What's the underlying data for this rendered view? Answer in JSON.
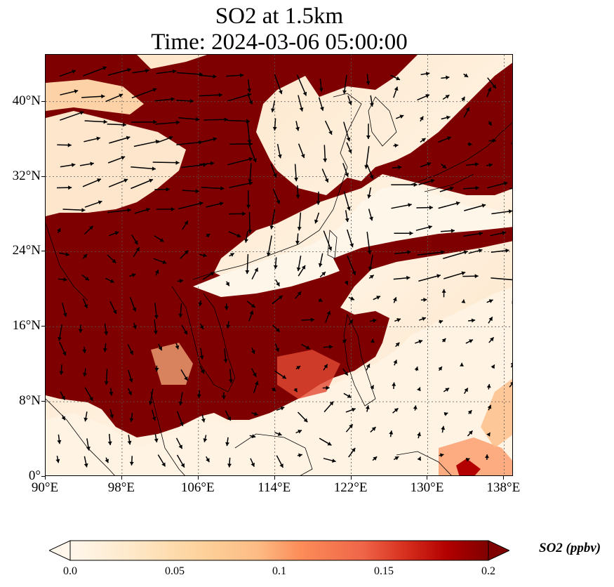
{
  "title": {
    "line1": "SO2 at 1.5km",
    "line2": "Time: 2024-03-06 05:00:00"
  },
  "map": {
    "extent": {
      "lon_min": 90,
      "lon_max": 139,
      "lat_min": 0,
      "lat_max": 45
    },
    "x_ticks": [
      {
        "value": 90,
        "label": "90°E"
      },
      {
        "value": 98,
        "label": "98°E"
      },
      {
        "value": 106,
        "label": "106°E"
      },
      {
        "value": 114,
        "label": "114°E"
      },
      {
        "value": 122,
        "label": "122°E"
      },
      {
        "value": 130,
        "label": "130°E"
      },
      {
        "value": 138,
        "label": "138°E"
      }
    ],
    "y_ticks": [
      {
        "value": 40,
        "label": "40°N"
      },
      {
        "value": 32,
        "label": "32°N"
      },
      {
        "value": 24,
        "label": "24°N"
      },
      {
        "value": 16,
        "label": "16°N"
      },
      {
        "value": 8,
        "label": "8°N"
      },
      {
        "value": 0,
        "label": "0°"
      }
    ],
    "gridlines": true,
    "colors": {
      "max": "#7f0000",
      "mid": "#d7301f",
      "low": "#fdbb84",
      "zero": "#fff7ec"
    }
  },
  "colorbar": {
    "label": "SO2 (ppbv)",
    "ticks": [
      {
        "value": 0,
        "label": "0.0"
      },
      {
        "value": 0.05,
        "label": "0.05"
      },
      {
        "value": 0.1,
        "label": "0.1"
      },
      {
        "value": 0.15,
        "label": "0.15"
      },
      {
        "value": 0.2,
        "label": "0.2"
      }
    ],
    "range": [
      0,
      0.2
    ],
    "extend": "both",
    "cmap": "OrRd"
  }
}
